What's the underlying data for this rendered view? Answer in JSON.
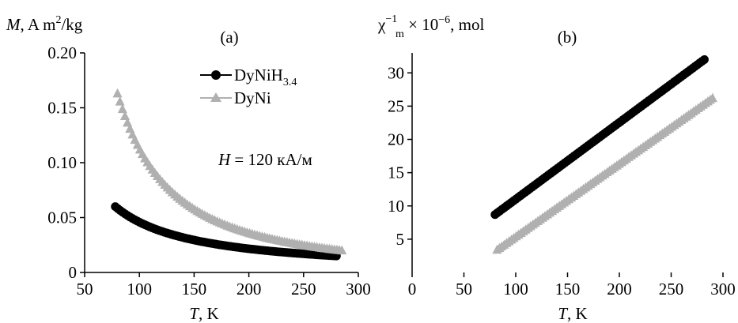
{
  "chart_data": [
    {
      "type": "scatter",
      "panel_label": "(a)",
      "ylabel": {
        "symbol": "M",
        "rest": ", A m",
        "sup": "2",
        "tail": "/kg"
      },
      "xlabel": {
        "symbol": "T",
        "rest": ", K"
      },
      "xlim": [
        50,
        300
      ],
      "ylim": [
        0,
        0.2
      ],
      "xticks": [
        "50",
        "100",
        "150",
        "200",
        "250",
        "300"
      ],
      "xtick_values": [
        50,
        100,
        150,
        200,
        250,
        300
      ],
      "yticks": [
        "0",
        "0.05",
        "0.10",
        "0.15",
        "0.20"
      ],
      "ytick_values": [
        0,
        0.05,
        0.1,
        0.15,
        0.2
      ],
      "annotation": {
        "symbol": "H",
        "rest": " = 120 кА/м"
      },
      "legend_position": "top-center",
      "series": [
        {
          "name": "DyNiH",
          "name_sub": "3.4",
          "marker": "circle",
          "color": "#000000",
          "curve": {
            "x_start": 78,
            "x_end": 280,
            "y_start": 0.06,
            "y_end": 0.015,
            "power": 0.95
          }
        },
        {
          "name": "DyNi",
          "marker": "triangle",
          "color": "#b0b0b0",
          "curve": {
            "x_start": 80,
            "x_end": 285,
            "y_start": 0.163,
            "y_end": 0.02,
            "power": 1.62
          }
        }
      ]
    },
    {
      "type": "scatter",
      "panel_label": "(b)",
      "ylabel": {
        "chi": "χ",
        "sup": "−1",
        "sub": "m",
        "rest": "  × 10",
        "exp": "−6",
        "tail": ", mol"
      },
      "xlabel": {
        "symbol": "T",
        "rest": ", K"
      },
      "xlim": [
        0,
        300
      ],
      "ylim": [
        0,
        33
      ],
      "xticks": [
        "0",
        "50",
        "100",
        "150",
        "200",
        "250",
        "300"
      ],
      "xtick_values": [
        0,
        50,
        100,
        150,
        200,
        250,
        300
      ],
      "yticks": [
        "5",
        "10",
        "15",
        "20",
        "25",
        "30"
      ],
      "ytick_values": [
        5,
        10,
        15,
        20,
        25,
        30
      ],
      "series": [
        {
          "name": "DyNiH3.4",
          "marker": "circle",
          "color": "#000000",
          "line": {
            "x_start": 80,
            "x_end": 282,
            "y_start": 8.7,
            "y_end": 32
          }
        },
        {
          "name": "DyNi",
          "marker": "triangle",
          "color": "#b0b0b0",
          "line": {
            "x_start": 82,
            "x_end": 290,
            "y_start": 3.4,
            "y_end": 26.2
          }
        }
      ]
    }
  ]
}
